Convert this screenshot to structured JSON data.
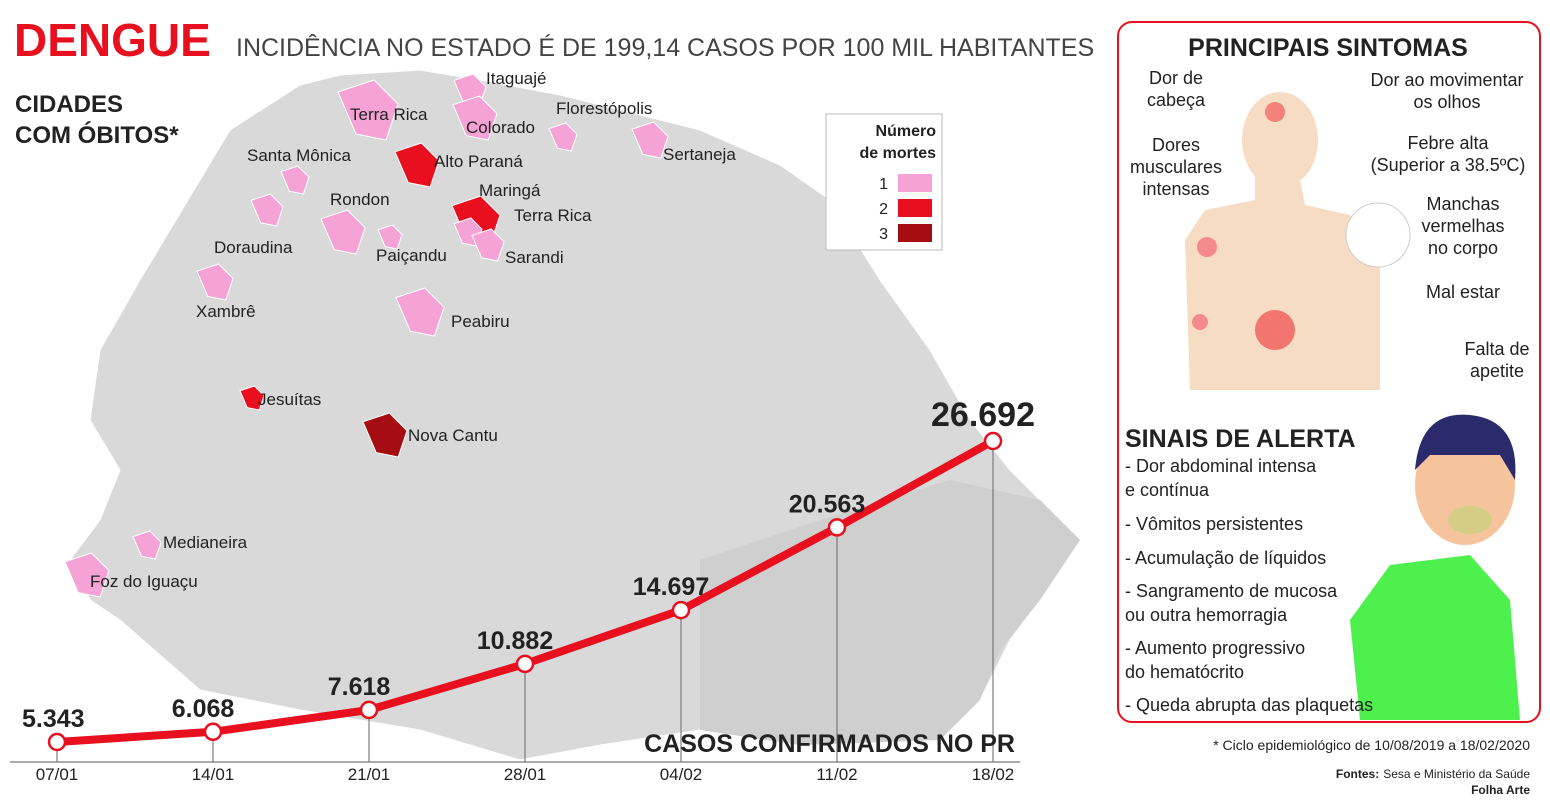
{
  "header": {
    "title": "DENGUE",
    "subtitle": "INCIDÊNCIA NO ESTADO É DE 199,14 CASOS POR 100 MIL HABITANTES"
  },
  "map": {
    "heading": [
      "CIDADES",
      "COM ÓBITOS*"
    ],
    "legend": {
      "title": [
        "Número",
        "de mortes"
      ],
      "items": [
        {
          "label": "1",
          "color": "#f5a3d6"
        },
        {
          "label": "2",
          "color": "#e8101e"
        },
        {
          "label": "3",
          "color": "#a50d12"
        }
      ]
    },
    "cities": [
      {
        "name": "Terra Rica",
        "deaths": 1
      },
      {
        "name": "Itaguajé",
        "deaths": 1
      },
      {
        "name": "Colorado",
        "deaths": 1
      },
      {
        "name": "Florestópolis",
        "deaths": 1
      },
      {
        "name": "Sertaneja",
        "deaths": 1
      },
      {
        "name": "Alto Paraná",
        "deaths": 2
      },
      {
        "name": "Santa Mônica",
        "deaths": 1
      },
      {
        "name": "Maringá",
        "deaths": 2
      },
      {
        "name": "Terra Rica",
        "deaths": 1
      },
      {
        "name": "Rondon",
        "deaths": 1
      },
      {
        "name": "Paiçandu",
        "deaths": 1
      },
      {
        "name": "Sarandi",
        "deaths": 1
      },
      {
        "name": "Doraudina",
        "deaths": 1
      },
      {
        "name": "Xambrê",
        "deaths": 1
      },
      {
        "name": "Peabiru",
        "deaths": 1
      },
      {
        "name": "Jesuítas",
        "deaths": 2
      },
      {
        "name": "Nova Cantu",
        "deaths": 3
      },
      {
        "name": "Medianeira",
        "deaths": 1
      },
      {
        "name": "Foz do Iguaçu",
        "deaths": 1
      }
    ]
  },
  "chart_data": {
    "type": "line",
    "title": "CASOS CONFIRMADOS NO PR",
    "categories": [
      "07/01",
      "14/01",
      "21/01",
      "28/01",
      "04/02",
      "11/02",
      "18/02"
    ],
    "values": [
      5343,
      6068,
      7618,
      10882,
      14697,
      20563,
      26692
    ],
    "value_labels": [
      "5.343",
      "6.068",
      "7.618",
      "10.882",
      "14.697",
      "20.563",
      "26.692"
    ],
    "color": "#e8101e"
  },
  "symptoms": {
    "title": "PRINCIPAIS SINTOMAS",
    "items": [
      [
        "Dor de",
        "cabeça"
      ],
      [
        "Dor ao movimentar",
        "os olhos"
      ],
      [
        "Febre alta",
        "(Superior a 38.5ºC)"
      ],
      [
        "Dores",
        "musculares",
        "intensas"
      ],
      [
        "Manchas",
        "vermelhas",
        "no corpo"
      ],
      [
        "Mal estar"
      ],
      [
        "Falta de",
        "apetite"
      ]
    ]
  },
  "alerts": {
    "title": "SINAIS DE ALERTA",
    "items": [
      [
        "- Dor abdominal intensa",
        "e contínua"
      ],
      [
        "- Vômitos persistentes"
      ],
      [
        "- Acumulação de líquidos"
      ],
      [
        "- Sangramento de mucosa",
        "ou outra hemorragia"
      ],
      [
        "- Aumento progressivo",
        "do hematócrito"
      ],
      [
        "- Queda abrupta das plaquetas"
      ]
    ]
  },
  "footer": {
    "note": "* Ciclo epidemiológico de 10/08/2019 a 18/02/2020",
    "sources_label": "Fontes:",
    "sources": "Sesa e Ministério da Saúde",
    "credit": "Folha Arte"
  }
}
